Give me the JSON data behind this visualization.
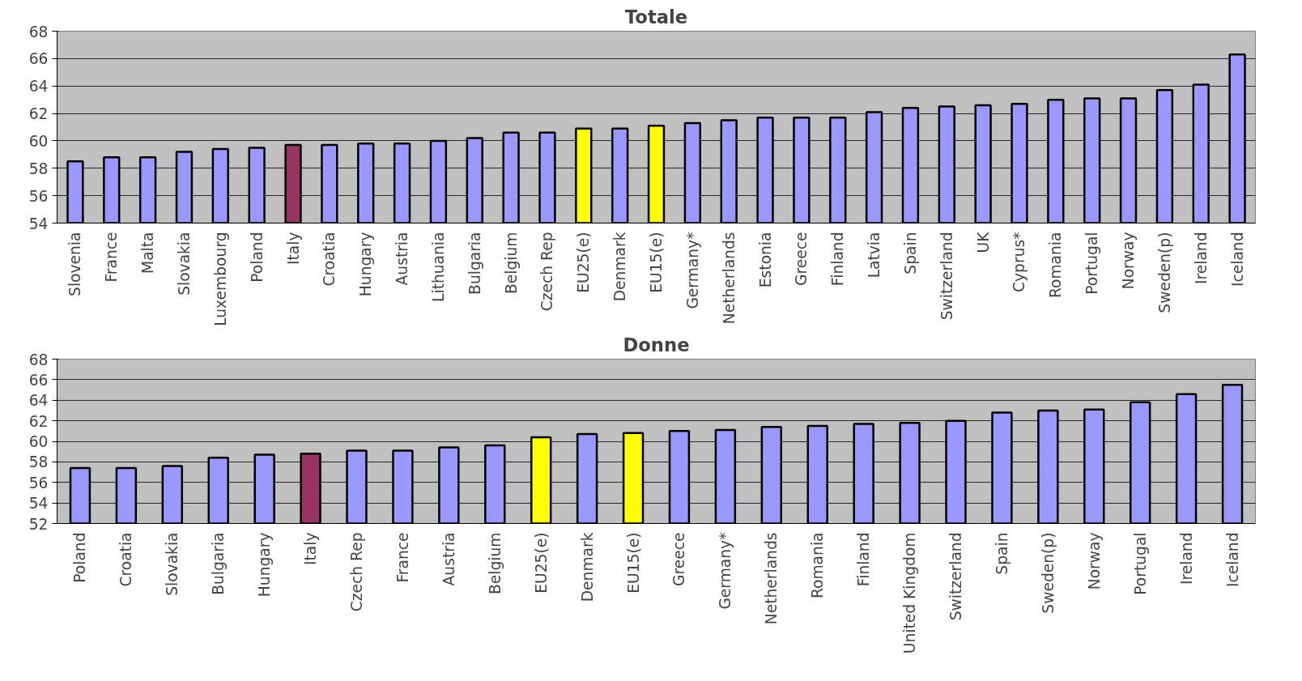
{
  "chart_data": [
    {
      "type": "bar",
      "title": "Totale",
      "categories": [
        "Slovenia",
        "France",
        "Malta",
        "Slovakia",
        "Luxembourg",
        "Poland",
        "Italy",
        "Croatia",
        "Hungary",
        "Austria",
        "Lithuania",
        "Bulgaria",
        "Belgium",
        "Czech Rep",
        "EU25(e)",
        "Denmark",
        "EU15(e)",
        "Germany*",
        "Netherlands",
        "Estonia",
        "Greece",
        "Finland",
        "Latvia",
        "Spain",
        "Switzerland",
        "UK",
        "Cyprus*",
        "Romania",
        "Portugal",
        "Norway",
        "Sweden(p)",
        "Ireland",
        "Iceland"
      ],
      "values": [
        58.5,
        58.8,
        58.8,
        59.2,
        59.4,
        59.5,
        59.7,
        59.7,
        59.8,
        59.8,
        60.0,
        60.2,
        60.6,
        60.6,
        60.9,
        60.9,
        61.1,
        61.3,
        61.5,
        61.7,
        61.7,
        61.7,
        62.1,
        62.4,
        62.5,
        62.6,
        62.7,
        63.0,
        63.1,
        63.1,
        63.7,
        64.1,
        66.3
      ],
      "colors": [
        "#9999ff",
        "#9999ff",
        "#9999ff",
        "#9999ff",
        "#9999ff",
        "#9999ff",
        "#993366",
        "#9999ff",
        "#9999ff",
        "#9999ff",
        "#9999ff",
        "#9999ff",
        "#9999ff",
        "#9999ff",
        "#ffff00",
        "#9999ff",
        "#ffff00",
        "#9999ff",
        "#9999ff",
        "#9999ff",
        "#9999ff",
        "#9999ff",
        "#9999ff",
        "#9999ff",
        "#9999ff",
        "#9999ff",
        "#9999ff",
        "#9999ff",
        "#9999ff",
        "#9999ff",
        "#9999ff",
        "#9999ff",
        "#9999ff"
      ],
      "ylim": [
        54,
        68
      ],
      "yticks": [
        54,
        56,
        58,
        60,
        62,
        64,
        66,
        68
      ],
      "grid": "y"
    },
    {
      "type": "bar",
      "title": "Donne",
      "categories": [
        "Poland",
        "Croatia",
        "Slovakia",
        "Bulgaria",
        "Hungary",
        "Italy",
        "Czech Rep",
        "France",
        "Austria",
        "Belgium",
        "EU25(e)",
        "Denmark",
        "EU15(e)",
        "Greece",
        "Germany*",
        "Netherlands",
        "Romania",
        "Finland",
        "United Kingdom",
        "Switzerland",
        "Spain",
        "Sweden(p)",
        "Norway",
        "Portugal",
        "Ireland",
        "Iceland"
      ],
      "values": [
        57.4,
        57.4,
        57.6,
        58.4,
        58.7,
        58.8,
        59.1,
        59.1,
        59.4,
        59.6,
        60.4,
        60.7,
        60.8,
        61.0,
        61.1,
        61.4,
        61.5,
        61.7,
        61.8,
        62.0,
        62.8,
        63.0,
        63.1,
        63.8,
        64.6,
        65.5
      ],
      "colors": [
        "#9999ff",
        "#9999ff",
        "#9999ff",
        "#9999ff",
        "#9999ff",
        "#993366",
        "#9999ff",
        "#9999ff",
        "#9999ff",
        "#9999ff",
        "#ffff00",
        "#9999ff",
        "#ffff00",
        "#9999ff",
        "#9999ff",
        "#9999ff",
        "#9999ff",
        "#9999ff",
        "#9999ff",
        "#9999ff",
        "#9999ff",
        "#9999ff",
        "#9999ff",
        "#9999ff",
        "#9999ff",
        "#9999ff"
      ],
      "ylim": [
        52,
        68
      ],
      "yticks": [
        52,
        54,
        56,
        58,
        60,
        62,
        64,
        66,
        68
      ],
      "grid": "y"
    }
  ]
}
